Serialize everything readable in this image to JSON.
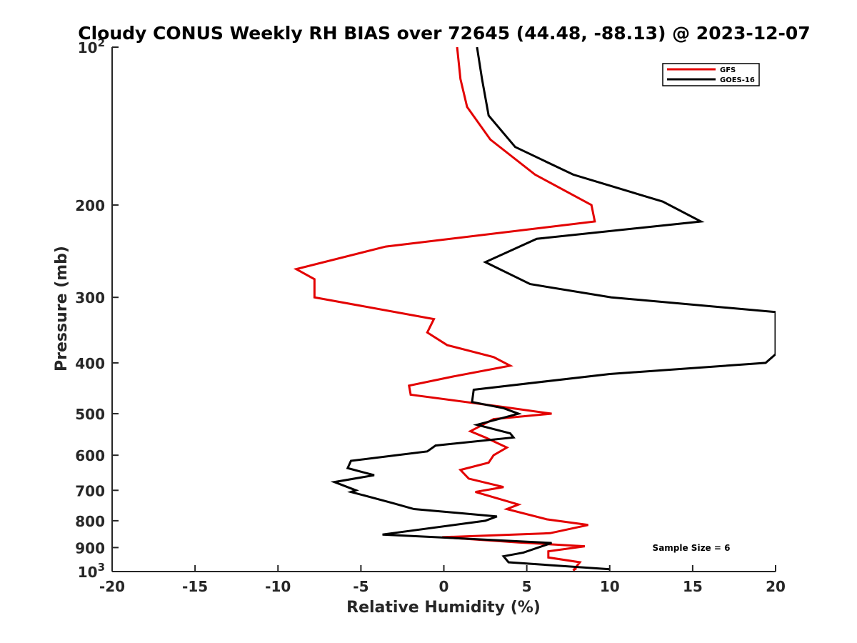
{
  "chart_data": {
    "type": "line",
    "title": "Cloudy CONUS Weekly RH BIAS over 72645 (44.48, -88.13) @ 2023-12-07",
    "xlabel": "Relative Humidity (%)",
    "ylabel": "Pressure (mb)",
    "xlim": [
      -20,
      20
    ],
    "ylim": [
      100,
      1000
    ],
    "y_scale": "log",
    "y_reversed": true,
    "grid": false,
    "legend_position": "top-right",
    "x_ticks": [
      -20,
      -15,
      -10,
      -5,
      0,
      5,
      10,
      15,
      20
    ],
    "x_tick_labels": [
      "-20",
      "-15",
      "-10",
      "-5",
      "0",
      "5",
      "10",
      "15",
      "20"
    ],
    "y_ticks": [
      {
        "value": 100,
        "label": "10",
        "sup": "2"
      },
      {
        "value": 200,
        "label": "200",
        "sup": ""
      },
      {
        "value": 300,
        "label": "300",
        "sup": ""
      },
      {
        "value": 400,
        "label": "400",
        "sup": ""
      },
      {
        "value": 500,
        "label": "500",
        "sup": ""
      },
      {
        "value": 600,
        "label": "600",
        "sup": ""
      },
      {
        "value": 700,
        "label": "700",
        "sup": ""
      },
      {
        "value": 800,
        "label": "800",
        "sup": ""
      },
      {
        "value": 900,
        "label": "900",
        "sup": ""
      },
      {
        "value": 1000,
        "label": "10",
        "sup": "3"
      }
    ],
    "annotation": "Sample Size = 6",
    "series": [
      {
        "name": "GFS",
        "color": "#e30000",
        "points": [
          [
            0.8,
            100
          ],
          [
            1.0,
            115
          ],
          [
            1.4,
            130
          ],
          [
            2.8,
            150
          ],
          [
            5.5,
            175
          ],
          [
            8.9,
            200
          ],
          [
            9.1,
            215
          ],
          [
            -3.5,
            240
          ],
          [
            -8.9,
            265
          ],
          [
            -7.8,
            277
          ],
          [
            -7.8,
            300
          ],
          [
            -0.6,
            330
          ],
          [
            -1.0,
            350
          ],
          [
            0.2,
            370
          ],
          [
            3.0,
            390
          ],
          [
            4.0,
            405
          ],
          [
            0.5,
            425
          ],
          [
            -2.1,
            442
          ],
          [
            -2.0,
            460
          ],
          [
            3.5,
            485
          ],
          [
            6.5,
            500
          ],
          [
            3.0,
            512
          ],
          [
            1.6,
            540
          ],
          [
            2.5,
            555
          ],
          [
            3.8,
            580
          ],
          [
            3.0,
            600
          ],
          [
            2.7,
            620
          ],
          [
            1.0,
            640
          ],
          [
            1.5,
            665
          ],
          [
            3.6,
            690
          ],
          [
            1.9,
            705
          ],
          [
            4.5,
            745
          ],
          [
            3.8,
            760
          ],
          [
            6.2,
            795
          ],
          [
            8.7,
            815
          ],
          [
            6.4,
            845
          ],
          [
            -0.1,
            860
          ],
          [
            4.5,
            880
          ],
          [
            8.5,
            895
          ],
          [
            6.3,
            915
          ],
          [
            6.3,
            940
          ],
          [
            8.2,
            960
          ],
          [
            7.8,
            995
          ],
          [
            8.0,
            985
          ]
        ]
      },
      {
        "name": "GOES-16",
        "color": "#000000",
        "points": [
          [
            2.0,
            100
          ],
          [
            2.3,
            115
          ],
          [
            2.7,
            135
          ],
          [
            4.3,
            155
          ],
          [
            7.8,
            175
          ],
          [
            13.2,
            197
          ],
          [
            15.5,
            215
          ],
          [
            5.6,
            232
          ],
          [
            2.5,
            257
          ],
          [
            5.2,
            283
          ],
          [
            10.1,
            300
          ],
          [
            20.0,
            320
          ],
          [
            20.0,
            385
          ],
          [
            19.4,
            400
          ],
          [
            10.0,
            420
          ],
          [
            1.8,
            450
          ],
          [
            1.7,
            475
          ],
          [
            3.6,
            488
          ],
          [
            4.5,
            500
          ],
          [
            2.0,
            525
          ],
          [
            4.0,
            545
          ],
          [
            4.2,
            555
          ],
          [
            -0.5,
            575
          ],
          [
            -1.0,
            590
          ],
          [
            -5.6,
            615
          ],
          [
            -5.8,
            635
          ],
          [
            -4.2,
            655
          ],
          [
            -6.6,
            675
          ],
          [
            -5.3,
            700
          ],
          [
            -5.6,
            705
          ],
          [
            -3.1,
            740
          ],
          [
            -1.8,
            760
          ],
          [
            3.2,
            785
          ],
          [
            2.5,
            800
          ],
          [
            -3.7,
            850
          ],
          [
            6.5,
            882
          ],
          [
            4.8,
            920
          ],
          [
            3.6,
            935
          ],
          [
            3.9,
            960
          ],
          [
            10.0,
            990
          ]
        ]
      }
    ]
  }
}
